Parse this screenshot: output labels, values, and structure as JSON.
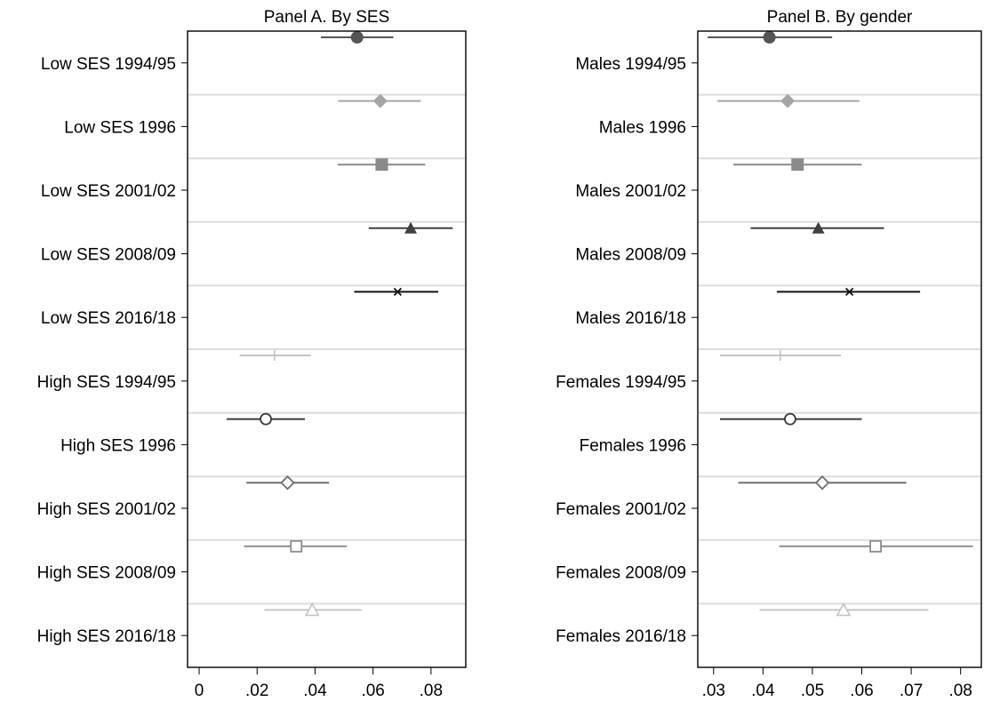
{
  "chart_data": [
    {
      "type": "coefficient-plot",
      "title": "Panel A. By SES",
      "xlim": [
        -0.004,
        0.092
      ],
      "xticks": [
        0,
        0.02,
        0.04,
        0.06,
        0.08
      ],
      "xtick_labels": [
        "0",
        ".02",
        ".04",
        ".06",
        ".08"
      ],
      "grid": "horizontal separators",
      "rows": [
        {
          "label": "Low SES 1994/95",
          "estimate": 0.0545,
          "ci_low": 0.042,
          "ci_high": 0.067,
          "marker": "circle-filled",
          "color": "#555555"
        },
        {
          "label": "Low SES 1996",
          "estimate": 0.0625,
          "ci_low": 0.048,
          "ci_high": 0.0765,
          "marker": "diamond-filled",
          "color": "#a6a6a6"
        },
        {
          "label": "Low SES 2001/02",
          "estimate": 0.063,
          "ci_low": 0.0478,
          "ci_high": 0.078,
          "marker": "square-filled",
          "color": "#8a8a8a"
        },
        {
          "label": "Low SES 2008/09",
          "estimate": 0.073,
          "ci_low": 0.0585,
          "ci_high": 0.0875,
          "marker": "triangle-filled",
          "color": "#404040"
        },
        {
          "label": "Low SES 2016/18",
          "estimate": 0.0685,
          "ci_low": 0.0535,
          "ci_high": 0.0825,
          "marker": "x",
          "color": "#111111"
        },
        {
          "label": "High SES 1994/95",
          "estimate": 0.026,
          "ci_low": 0.014,
          "ci_high": 0.0385,
          "marker": "plus",
          "color": "#c4c4c4"
        },
        {
          "label": "High SES 1996",
          "estimate": 0.023,
          "ci_low": 0.0095,
          "ci_high": 0.0365,
          "marker": "circle-open",
          "color": "#3a3a3a"
        },
        {
          "label": "High SES 2001/02",
          "estimate": 0.0305,
          "ci_low": 0.0163,
          "ci_high": 0.0448,
          "marker": "diamond-open",
          "color": "#6e6e6e"
        },
        {
          "label": "High SES 2008/09",
          "estimate": 0.0335,
          "ci_low": 0.0155,
          "ci_high": 0.051,
          "marker": "square-open",
          "color": "#8c8c8c"
        },
        {
          "label": "High SES 2016/18",
          "estimate": 0.039,
          "ci_low": 0.0225,
          "ci_high": 0.056,
          "marker": "triangle-open",
          "color": "#c4c4c4"
        }
      ]
    },
    {
      "type": "coefficient-plot",
      "title": "Panel B. By gender",
      "xlim": [
        0.0268,
        0.0842
      ],
      "xticks": [
        0.03,
        0.04,
        0.05,
        0.06,
        0.07,
        0.08
      ],
      "xtick_labels": [
        ".03",
        ".04",
        ".05",
        ".06",
        ".07",
        ".08"
      ],
      "grid": "horizontal separators",
      "rows": [
        {
          "label": "Males 1994/95",
          "estimate": 0.0413,
          "ci_low": 0.0288,
          "ci_high": 0.054,
          "marker": "circle-filled",
          "color": "#555555"
        },
        {
          "label": "Males 1996",
          "estimate": 0.045,
          "ci_low": 0.0308,
          "ci_high": 0.0595,
          "marker": "diamond-filled",
          "color": "#a6a6a6"
        },
        {
          "label": "Males 2001/02",
          "estimate": 0.047,
          "ci_low": 0.034,
          "ci_high": 0.06,
          "marker": "square-filled",
          "color": "#8a8a8a"
        },
        {
          "label": "Males 2008/09",
          "estimate": 0.0512,
          "ci_low": 0.0375,
          "ci_high": 0.0645,
          "marker": "triangle-filled",
          "color": "#404040"
        },
        {
          "label": "Males 2016/18",
          "estimate": 0.0575,
          "ci_low": 0.0428,
          "ci_high": 0.0718,
          "marker": "x",
          "color": "#111111"
        },
        {
          "label": "Females 1994/95",
          "estimate": 0.0435,
          "ci_low": 0.0313,
          "ci_high": 0.0558,
          "marker": "plus",
          "color": "#c4c4c4"
        },
        {
          "label": "Females 1996",
          "estimate": 0.0455,
          "ci_low": 0.0313,
          "ci_high": 0.06,
          "marker": "circle-open",
          "color": "#3a3a3a"
        },
        {
          "label": "Females 2001/02",
          "estimate": 0.052,
          "ci_low": 0.035,
          "ci_high": 0.069,
          "marker": "diamond-open",
          "color": "#6e6e6e"
        },
        {
          "label": "Females 2008/09",
          "estimate": 0.0628,
          "ci_low": 0.0433,
          "ci_high": 0.0825,
          "marker": "square-open",
          "color": "#8c8c8c"
        },
        {
          "label": "Females 2016/18",
          "estimate": 0.0563,
          "ci_low": 0.0393,
          "ci_high": 0.0735,
          "marker": "triangle-open",
          "color": "#c4c4c4"
        }
      ]
    }
  ]
}
